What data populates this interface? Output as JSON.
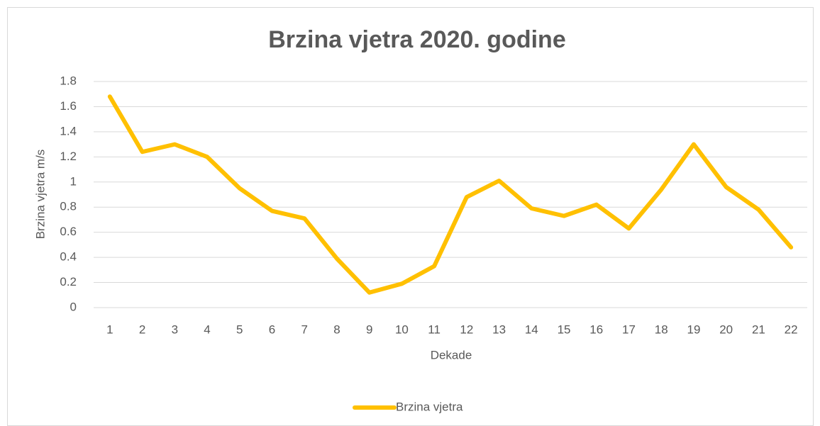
{
  "chart_data": {
    "type": "line",
    "title": "Brzina vjetra 2020. godine",
    "x_label": "Dekade",
    "y_label": "Brzina vjetra m/s",
    "categories": [
      "1",
      "2",
      "3",
      "4",
      "5",
      "6",
      "7",
      "8",
      "9",
      "10",
      "11",
      "12",
      "13",
      "14",
      "15",
      "16",
      "17",
      "18",
      "19",
      "20",
      "21",
      "22"
    ],
    "series": [
      {
        "name": "Brzina vjetra",
        "color": "#ffc000",
        "values": [
          1.68,
          1.24,
          1.3,
          1.2,
          0.95,
          0.77,
          0.71,
          0.39,
          0.12,
          0.19,
          0.33,
          0.88,
          1.01,
          0.79,
          0.73,
          0.82,
          0.63,
          0.94,
          1.3,
          0.96,
          0.78,
          0.48
        ]
      }
    ],
    "ylim": [
      0,
      1.8
    ],
    "yticks": [
      0,
      0.2,
      0.4,
      0.6,
      0.8,
      1,
      1.2,
      1.4,
      1.6,
      1.8
    ],
    "grid": true,
    "legend": "bottom"
  }
}
